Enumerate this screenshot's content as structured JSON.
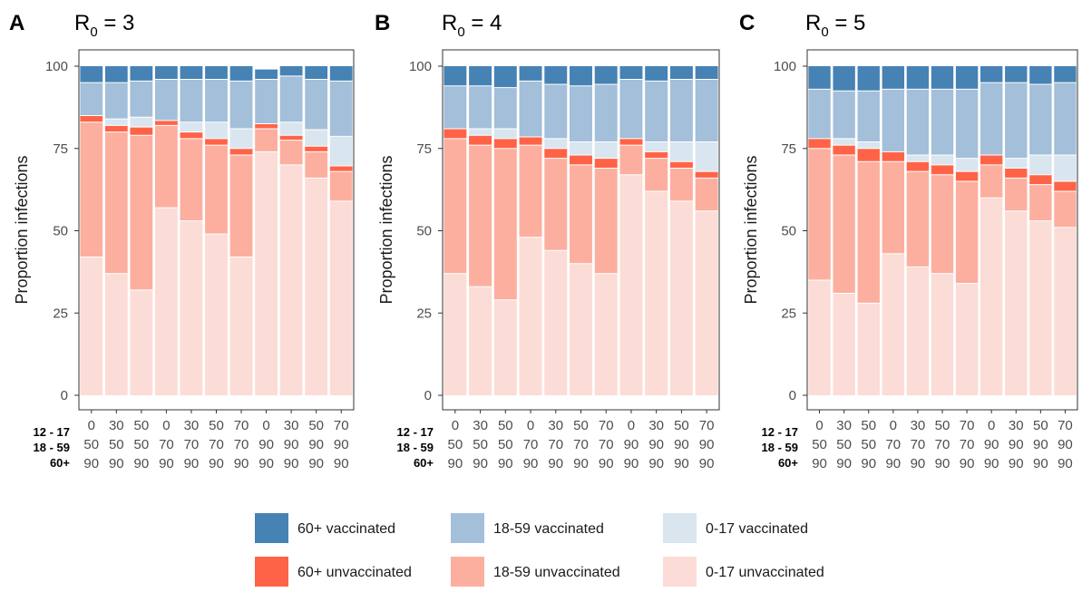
{
  "chart_data": {
    "type": "bar",
    "stacked": true,
    "ylabel": "Proportion infections",
    "ylim": [
      0,
      100
    ],
    "yticks": [
      0,
      25,
      50,
      75,
      100
    ],
    "row_labels": [
      "12 - 17",
      "18 - 59",
      "60+"
    ],
    "x_coverage": {
      "age_12_17": [
        "0",
        "30",
        "50",
        "0",
        "30",
        "50",
        "70",
        "0",
        "30",
        "50",
        "70"
      ],
      "age_18_59": [
        "50",
        "50",
        "50",
        "70",
        "70",
        "70",
        "70",
        "90",
        "90",
        "90",
        "90"
      ],
      "age_60_plus": [
        "90",
        "90",
        "90",
        "90",
        "90",
        "90",
        "90",
        "90",
        "90",
        "90",
        "90"
      ]
    },
    "stack_order_bottom_to_top": [
      "0-17 unvaccinated",
      "18-59 unvaccinated",
      "60+ unvaccinated",
      "0-17 vaccinated",
      "18-59 vaccinated",
      "60+ vaccinated"
    ],
    "legend": [
      {
        "name": "60+ vaccinated",
        "color": "#4682b4"
      },
      {
        "name": "18-59 vaccinated",
        "color": "#a3bfd9"
      },
      {
        "name": "0-17 vaccinated",
        "color": "#d9e5ef"
      },
      {
        "name": "60+ unvaccinated",
        "color": "#ff6347"
      },
      {
        "name": "18-59 unvaccinated",
        "color": "#fcaf9f"
      },
      {
        "name": "0-17 unvaccinated",
        "color": "#fcdcd6"
      }
    ],
    "panels": [
      {
        "letter": "A",
        "title_main": "R",
        "title_sub": "0",
        "title_rest": " = 3",
        "series": [
          {
            "name": "0-17 unvaccinated",
            "values": [
              42,
              37,
              32,
              57,
              53,
              49,
              42,
              74,
              70,
              66,
              59
            ]
          },
          {
            "name": "18-59 unvaccinated",
            "values": [
              41,
              43,
              47,
              25,
              25,
              27,
              31,
              7,
              7.5,
              8,
              9
            ]
          },
          {
            "name": "60+ unvaccinated",
            "values": [
              2,
              2,
              2.5,
              1.5,
              2,
              2,
              2,
              1.5,
              1.5,
              1.7,
              1.7
            ]
          },
          {
            "name": "0-17 vaccinated",
            "values": [
              0,
              2,
              3,
              0,
              3,
              5,
              6,
              0,
              4,
              5,
              9
            ]
          },
          {
            "name": "18-59 vaccinated",
            "values": [
              10,
              11,
              11,
              12.5,
              13,
              13,
              14.5,
              13.5,
              14,
              15.3,
              16.8
            ]
          },
          {
            "name": "60+ vaccinated",
            "values": [
              5,
              5,
              4.5,
              4,
              4,
              4,
              4.5,
              3,
              3,
              4,
              4.5
            ]
          }
        ]
      },
      {
        "letter": "B",
        "title_main": "R",
        "title_sub": "0",
        "title_rest": " = 4",
        "series": [
          {
            "name": "0-17 unvaccinated",
            "values": [
              37,
              33,
              29,
              48,
              44,
              40,
              37,
              67,
              62,
              59,
              56
            ]
          },
          {
            "name": "18-59 unvaccinated",
            "values": [
              41,
              43,
              46,
              28,
              28,
              30,
              32,
              9,
              10,
              10,
              10
            ]
          },
          {
            "name": "60+ unvaccinated",
            "values": [
              3,
              3,
              3,
              2.5,
              3,
              3,
              3,
              2,
              2,
              2,
              2
            ]
          },
          {
            "name": "0-17 vaccinated",
            "values": [
              0,
              2,
              3,
              0,
              3,
              4,
              5,
              0,
              3,
              6,
              9
            ]
          },
          {
            "name": "18-59 vaccinated",
            "values": [
              13,
              13,
              12.5,
              17,
              16.5,
              17,
              17.5,
              18,
              18.5,
              19,
              19
            ]
          },
          {
            "name": "60+ vaccinated",
            "values": [
              6,
              6,
              6.5,
              4.5,
              5.5,
              6,
              5.5,
              4,
              4.5,
              4,
              4
            ]
          }
        ]
      },
      {
        "letter": "C",
        "title_main": "R",
        "title_sub": "0",
        "title_rest": " = 5",
        "series": [
          {
            "name": "0-17 unvaccinated",
            "values": [
              35,
              31,
              28,
              43,
              39,
              37,
              34,
              60,
              56,
              53,
              51
            ]
          },
          {
            "name": "18-59 unvaccinated",
            "values": [
              40,
              42,
              43,
              28,
              29,
              30,
              31,
              10,
              10,
              11,
              11
            ]
          },
          {
            "name": "60+ unvaccinated",
            "values": [
              3,
              3,
              4,
              3,
              3,
              3,
              3,
              3,
              3,
              3,
              3
            ]
          },
          {
            "name": "0-17 vaccinated",
            "values": [
              0,
              2,
              2,
              0,
              2,
              3,
              4,
              0,
              3,
              6,
              8
            ]
          },
          {
            "name": "18-59 vaccinated",
            "values": [
              15,
              14.5,
              15.5,
              19,
              20,
              20,
              21,
              22,
              23,
              21.5,
              22
            ]
          },
          {
            "name": "60+ vaccinated",
            "values": [
              7,
              7.5,
              7.5,
              7,
              7,
              7,
              7,
              5,
              5,
              5.5,
              5
            ]
          }
        ]
      }
    ]
  }
}
